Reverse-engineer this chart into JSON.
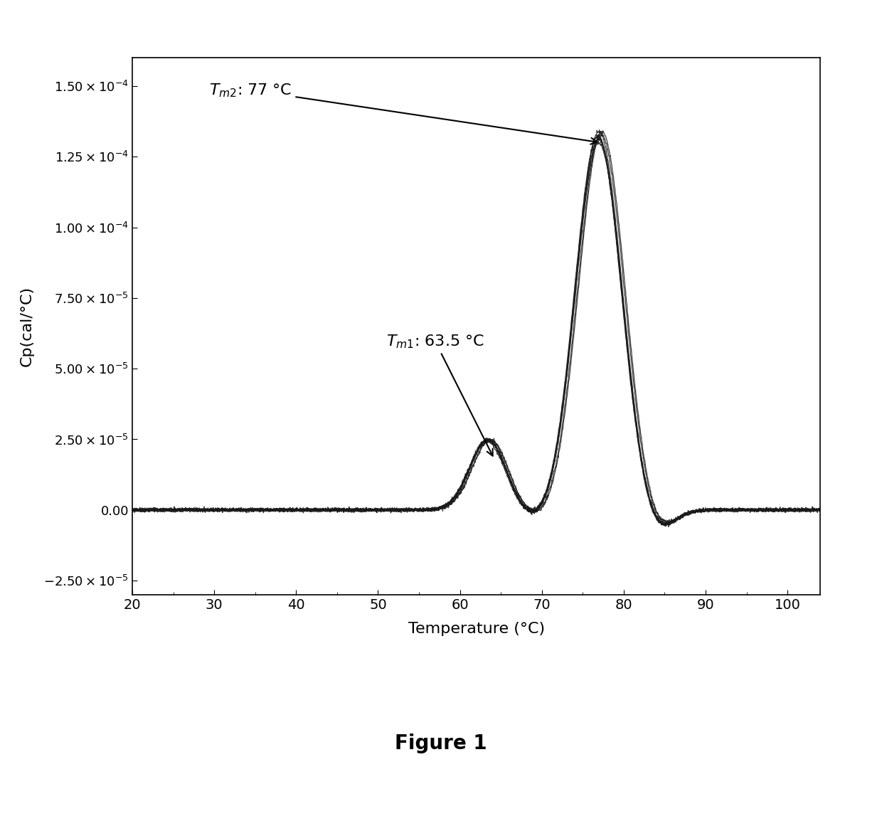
{
  "xlabel": "Temperature (°C)",
  "ylabel": "Cp(cal/°C)",
  "xlim": [
    20,
    104
  ],
  "ylim": [
    -3e-05,
    0.00016
  ],
  "xticks": [
    20,
    30,
    40,
    50,
    60,
    70,
    80,
    90,
    100
  ],
  "ytick_positions": [
    -2.5e-05,
    0.0,
    2.5e-05,
    5e-05,
    7.5e-05,
    0.0001,
    0.000125,
    0.00015
  ],
  "ytick_labels": [
    "-2.50×10⁻⁵",
    "0.00",
    "2.50×10⁻⁵",
    "5.00×10⁻⁵",
    "7.50×10⁻⁵",
    "1.00×10⁻⁴",
    "1.25×10⁻⁴",
    "1.50×10⁻⁴"
  ],
  "tm1": 63.5,
  "tm2": 77.0,
  "tm1_label": "T$_{m1}$: 63.5 °C",
  "tm2_label": "T$_{m2}$: 77 °C",
  "figure_caption": "Figure 1",
  "n_curves": 8,
  "background_color": "#ffffff",
  "line_color": "#1a1a1a",
  "line_width": 0.9
}
